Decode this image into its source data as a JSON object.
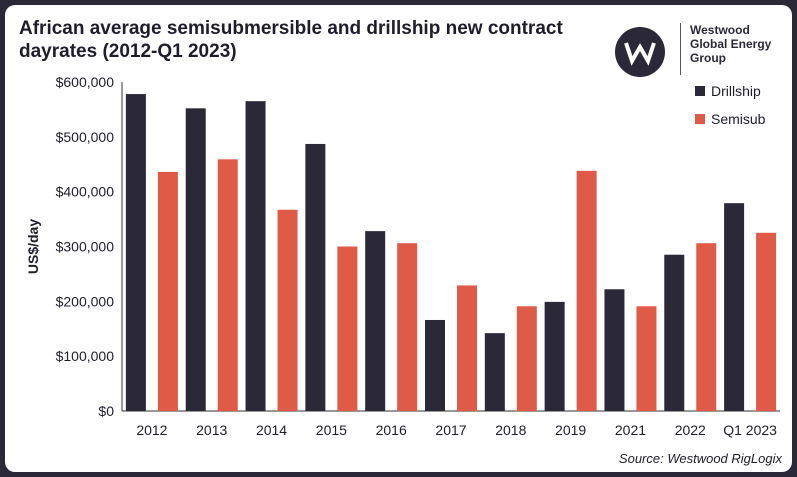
{
  "header": {
    "title": "African average semisubmersible and drillship new contract dayrates (2012-Q1 2023)"
  },
  "logo": {
    "name_lines": [
      "Westwood",
      "Global Energy",
      "Group"
    ],
    "icon": "westwood-w-logo-icon"
  },
  "footer": {
    "source": "Source: Westwood RigLogix"
  },
  "colors": {
    "drillship": "#2b2838",
    "semisub": "#e05a48",
    "frame": "#2b2838"
  },
  "chart_data": {
    "type": "bar",
    "title": "African average semisubmersible and drillship new contract dayrates (2012-Q1 2023)",
    "xlabel": "",
    "ylabel": "US$/day",
    "ylim": [
      0,
      600000
    ],
    "yticks": [
      0,
      100000,
      200000,
      300000,
      400000,
      500000,
      600000
    ],
    "ytick_labels": [
      "$0",
      "$100,000",
      "$200,000",
      "$300,000",
      "$400,000",
      "$500,000",
      "$600,000"
    ],
    "grid": false,
    "legend_position": "top-right",
    "categories": [
      "2012",
      "2013",
      "2014",
      "2015",
      "2016",
      "2017",
      "2018",
      "2019",
      "2021",
      "2022",
      "Q1 2023"
    ],
    "series": [
      {
        "name": "Drillship",
        "color": "#2b2838",
        "values": [
          578000,
          552000,
          565000,
          487000,
          328000,
          166000,
          142000,
          199000,
          222000,
          285000,
          379000
        ]
      },
      {
        "name": "Semisub",
        "color": "#e05a48",
        "values": [
          436000,
          459000,
          367000,
          300000,
          306000,
          229000,
          191000,
          438000,
          191000,
          306000,
          325000
        ]
      }
    ]
  }
}
